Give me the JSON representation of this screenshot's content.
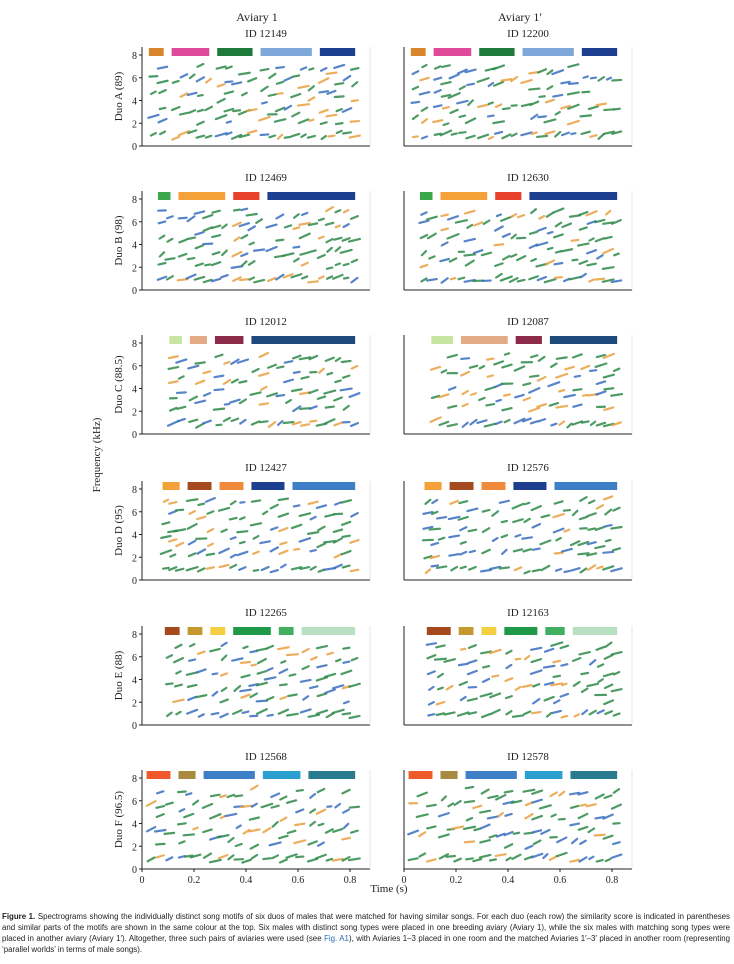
{
  "figure": {
    "column_headers": [
      "Aviary 1",
      "Aviary 1′"
    ],
    "y_axis_common_label": "Frequency (kHz)",
    "x_axis_label": "Time (s)",
    "y_ticks": [
      "0",
      "2",
      "4",
      "6",
      "8"
    ],
    "x_ticks": [
      "0",
      "0.2",
      "0.4",
      "0.6",
      "0.8"
    ],
    "rows": [
      {
        "duo_label": "Duo A (89)",
        "left_id": "ID 12149",
        "right_id": "ID 12200",
        "bars_left": [
          [
            "#d8862c",
            0.03
          ],
          [
            "#e04a9a",
            0.13
          ],
          [
            "#1e7a3a",
            0.33
          ],
          [
            "#7fa8da",
            0.52
          ],
          [
            "#1d3f8f",
            0.78
          ]
        ],
        "bars_right": [
          [
            "#d8862c",
            0.03
          ],
          [
            "#e04a9a",
            0.13
          ],
          [
            "#1e7a3a",
            0.33
          ],
          [
            "#7fa8da",
            0.52
          ],
          [
            "#1d3f8f",
            0.78
          ]
        ]
      },
      {
        "duo_label": "Duo B (98)",
        "left_id": "ID 12469",
        "right_id": "ID 12630",
        "bars_left": [
          [
            "#3aa84a",
            0.07
          ],
          [
            "#f4a13a",
            0.16
          ],
          [
            "#e8412c",
            0.4
          ],
          [
            "#1d3f8f",
            0.55
          ]
        ],
        "bars_right": [
          [
            "#3aa84a",
            0.07
          ],
          [
            "#f4a13a",
            0.16
          ],
          [
            "#e8412c",
            0.4
          ],
          [
            "#1d3f8f",
            0.55
          ]
        ]
      },
      {
        "duo_label": "Duo C (88.5)",
        "left_id": "ID 12012",
        "right_id": "ID 12087",
        "bars_left": [
          [
            "#c7e5a0",
            0.12
          ],
          [
            "#e2aa86",
            0.21
          ],
          [
            "#8c2a4a",
            0.32
          ],
          [
            "#1d4a7a",
            0.48
          ]
        ],
        "bars_right": [
          [
            "#c7e5a0",
            0.12
          ],
          [
            "#e2aa86",
            0.25
          ],
          [
            "#8c2a4a",
            0.49
          ],
          [
            "#1d4a7a",
            0.64
          ]
        ]
      },
      {
        "duo_label": "Duo D (95)",
        "left_id": "ID 12427",
        "right_id": "ID 12576",
        "bars_left": [
          [
            "#f4a13a",
            0.09
          ],
          [
            "#a44a1e",
            0.2
          ],
          [
            "#f08a3a",
            0.34
          ],
          [
            "#1d3f8f",
            0.48
          ],
          [
            "#3f7fc8",
            0.66
          ]
        ],
        "bars_right": [
          [
            "#f4a13a",
            0.09
          ],
          [
            "#a44a1e",
            0.2
          ],
          [
            "#f08a3a",
            0.34
          ],
          [
            "#1d3f8f",
            0.48
          ],
          [
            "#3f7fc8",
            0.66
          ]
        ]
      },
      {
        "duo_label": "Duo E (88)",
        "left_id": "ID 12265",
        "right_id": "ID 12163",
        "bars_left": [
          [
            "#a44a1e",
            0.1
          ],
          [
            "#c49a30",
            0.2
          ],
          [
            "#f4d040",
            0.3
          ],
          [
            "#1e9a48",
            0.4
          ],
          [
            "#40b060",
            0.6
          ],
          [
            "#b8e0c0",
            0.7
          ]
        ],
        "bars_right": [
          [
            "#a44a1e",
            0.1
          ],
          [
            "#c49a30",
            0.24
          ],
          [
            "#f4d040",
            0.34
          ],
          [
            "#1e9a48",
            0.44
          ],
          [
            "#40b060",
            0.62
          ],
          [
            "#b8e0c0",
            0.74
          ]
        ]
      },
      {
        "duo_label": "Duo F (96.5)",
        "left_id": "ID 12568",
        "right_id": "ID 12578",
        "bars_left": [
          [
            "#f05a2a",
            0.02
          ],
          [
            "#a88a40",
            0.16
          ],
          [
            "#3f7fc8",
            0.27
          ],
          [
            "#2a9fd0",
            0.53
          ],
          [
            "#2a7a90",
            0.73
          ]
        ],
        "bars_right": [
          [
            "#f05a2a",
            0.02
          ],
          [
            "#a88a40",
            0.16
          ],
          [
            "#3f7fc8",
            0.27
          ],
          [
            "#2a9fd0",
            0.53
          ],
          [
            "#2a7a90",
            0.73
          ]
        ]
      }
    ]
  },
  "caption": {
    "label": "Figure 1.",
    "text_1": " Spectrograms showing the individually distinct song motifs of six duos of males that were matched for having similar songs. For each duo (each row) the similarity score is indicated in parentheses and similar parts of the motifs are shown in the same colour at the top. Six males with distinct song types were placed in one breeding aviary (Aviary 1), while the six males with matching song types were placed in another aviary (Aviary 1′). Altogether, three such pairs of aviaries were used (see ",
    "link": "Fig. A1",
    "text_2": "), with Aviaries 1–3 placed in one room and the matched Aviaries 1′–3′ placed in another room (representing ‘parallel worlds’ in terms of male songs)."
  }
}
